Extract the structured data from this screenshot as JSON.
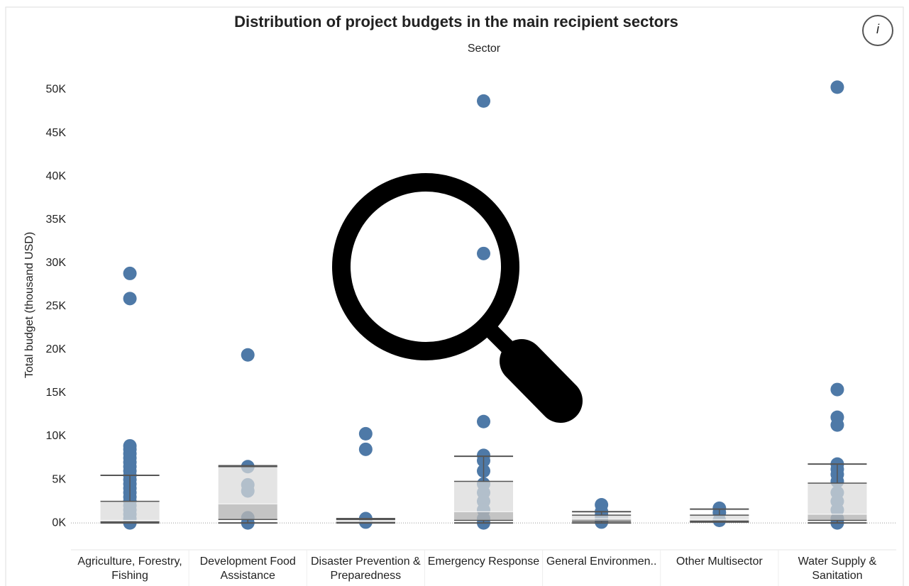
{
  "chart_data": {
    "type": "box",
    "title": "Distribution of project budgets in the main recipient sectors",
    "x_label": "Sector",
    "y_label": "Total budget (thousand USD)",
    "info_button": "i",
    "categories": [
      "Agriculture, Forestry, Fishing",
      "Development Food Assistance",
      "Disaster Prevention & Preparedness",
      "Emergency Response",
      "General Environmen..",
      "Other Multisector",
      "Water Supply & Sanitation"
    ],
    "boxes": [
      {
        "min": 0,
        "q1": 100,
        "median": 300,
        "q3": 2500,
        "max": 5500
      },
      {
        "min": 0,
        "q1": 400,
        "median": 2200,
        "q3": 6500,
        "max": 6600
      },
      {
        "min": 0,
        "q1": 50,
        "median": 200,
        "q3": 400,
        "max": 500
      },
      {
        "min": 0,
        "q1": 300,
        "median": 1300,
        "q3": 4800,
        "max": 7700
      },
      {
        "min": 0,
        "q1": 200,
        "median": 500,
        "q3": 900,
        "max": 1300
      },
      {
        "min": 100,
        "q1": 200,
        "median": 400,
        "q3": 900,
        "max": 1600
      },
      {
        "min": 0,
        "q1": 300,
        "median": 1000,
        "q3": 4600,
        "max": 6800
      }
    ],
    "points": [
      [
        28800,
        25900,
        8900,
        8500,
        8000,
        7500,
        7000,
        6500,
        6000,
        5500,
        5000,
        4500,
        4000,
        3500,
        3000,
        2500,
        2000,
        1500,
        1000,
        500,
        0
      ],
      [
        19400,
        6500,
        4400,
        3700,
        600,
        0
      ],
      [
        10300,
        8500,
        500,
        100
      ],
      [
        48700,
        31100,
        11700,
        7800,
        7200,
        6000,
        4500,
        3500,
        2500,
        1500,
        500,
        0
      ],
      [
        2100,
        1300,
        900,
        500,
        100
      ],
      [
        1700,
        1200,
        300
      ],
      [
        50300,
        15400,
        12200,
        11300,
        6800,
        6200,
        5600,
        4800,
        3500,
        2500,
        1500,
        500,
        0
      ]
    ],
    "point_color": "#4e79a7",
    "box_color": "#d9d9d9",
    "lower_box_color": "#b5b5b5",
    "whisker_color": "#555555",
    "ylim": [
      -3100,
      53400
    ],
    "yticks": [
      {
        "value": 0,
        "label": "0K"
      },
      {
        "value": 5000,
        "label": "5K"
      },
      {
        "value": 10000,
        "label": "10K"
      },
      {
        "value": 15000,
        "label": "15K"
      },
      {
        "value": 20000,
        "label": "20K"
      },
      {
        "value": 25000,
        "label": "25K"
      },
      {
        "value": 30000,
        "label": "30K"
      },
      {
        "value": 35000,
        "label": "35K"
      },
      {
        "value": 40000,
        "label": "40K"
      },
      {
        "value": 45000,
        "label": "45K"
      },
      {
        "value": 50000,
        "label": "50K"
      }
    ],
    "zero_line": true,
    "grid": false
  }
}
